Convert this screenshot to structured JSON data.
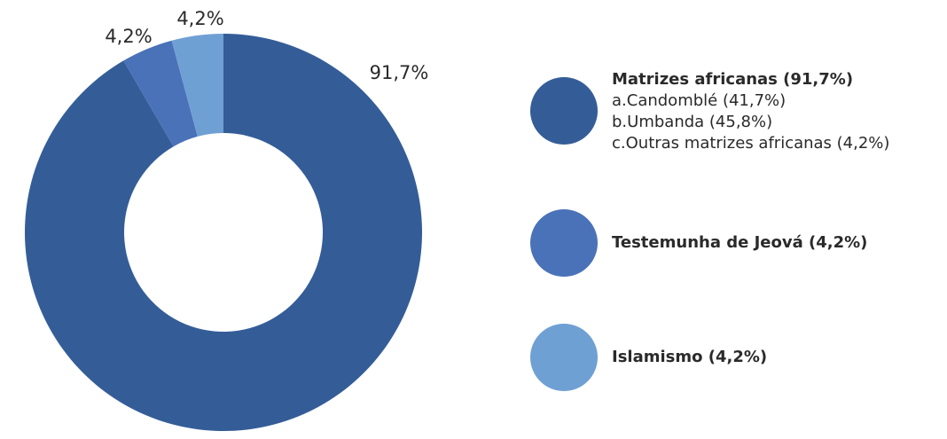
{
  "chart_data": {
    "type": "donut",
    "categories": [
      "Matrizes africanas (91,7%)",
      "Testemunha de Jeová (4,2%)",
      "Islamismo (4,2%)"
    ],
    "values": [
      91.7,
      4.2,
      4.2
    ],
    "value_labels": [
      "91,7%",
      "4,2%",
      "4,2%"
    ],
    "colors": [
      "#345d98",
      "#4a72b8",
      "#6fa0d4"
    ],
    "subitems": [
      "a.Candomblé (41,7%)",
      "b.Umbanda (45,8%)",
      "c.Outras matrizes africanas (4,2%)"
    ]
  }
}
